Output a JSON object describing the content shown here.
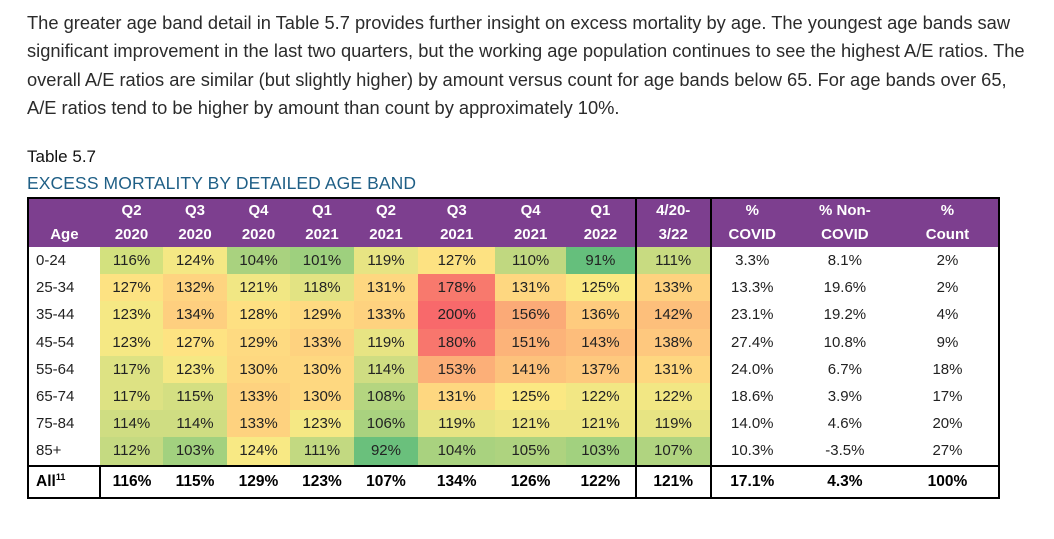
{
  "paragraph": "The greater age band detail in Table 5.7 provides further insight on excess mortality by age. The youngest age bands saw significant improvement in the last two quarters, but the working age population continues to see the highest A/E ratios. The overall A/E ratios are similar (but slightly higher) by amount versus count for age bands below 65. For age bands over 65, A/E ratios tend to be higher by amount than count by approximately 10%.",
  "table_label": "Table 5.7",
  "table_title": "EXCESS MORTALITY BY DETAILED AGE BAND",
  "header": {
    "age": "Age",
    "top": [
      "Q2",
      "Q3",
      "Q4",
      "Q1",
      "Q2",
      "Q3",
      "Q4",
      "Q1",
      "4/20-",
      "%",
      "% Non-",
      "%"
    ],
    "bottom": [
      "2020",
      "2020",
      "2020",
      "2021",
      "2021",
      "2021",
      "2021",
      "2022",
      "3/22",
      "COVID",
      "COVID",
      "Count"
    ]
  },
  "rows": [
    {
      "age": "0-24",
      "vals": [
        "116%",
        "124%",
        "104%",
        "101%",
        "119%",
        "127%",
        "110%",
        "91%",
        "111%",
        "3.3%",
        "8.1%",
        "2%"
      ],
      "colors": [
        "#d3e17e",
        "#f4e884",
        "#a9d27f",
        "#9ed07e",
        "#e7e483",
        "#fde282",
        "#c0d880",
        "#65bf7c",
        "#c8db81",
        "",
        "",
        ""
      ]
    },
    {
      "age": "25-34",
      "vals": [
        "127%",
        "132%",
        "121%",
        "118%",
        "131%",
        "178%",
        "131%",
        "125%",
        "133%",
        "13.3%",
        "19.6%",
        "2%"
      ],
      "colors": [
        "#fde282",
        "#fed480",
        "#f1e784",
        "#e2e383",
        "#fed780",
        "#f8796d",
        "#fed780",
        "#fae983",
        "#fed27f",
        "",
        "",
        ""
      ]
    },
    {
      "age": "35-44",
      "vals": [
        "123%",
        "134%",
        "128%",
        "129%",
        "133%",
        "200%",
        "156%",
        "136%",
        "142%",
        "23.1%",
        "19.2%",
        "4%"
      ],
      "colors": [
        "#f5e884",
        "#fecf7f",
        "#fee082",
        "#feda81",
        "#fed27f",
        "#f8696b",
        "#fbaa77",
        "#fecb7e",
        "#fdbf7b",
        "",
        "",
        ""
      ]
    },
    {
      "age": "45-54",
      "vals": [
        "123%",
        "127%",
        "129%",
        "133%",
        "119%",
        "180%",
        "151%",
        "143%",
        "138%",
        "27.4%",
        "10.8%",
        "9%"
      ],
      "colors": [
        "#f5e884",
        "#fee382",
        "#feda81",
        "#fed27f",
        "#e7e483",
        "#f8766d",
        "#fcb379",
        "#fdbd7b",
        "#fec87e",
        "",
        "",
        ""
      ]
    },
    {
      "age": "55-64",
      "vals": [
        "117%",
        "123%",
        "130%",
        "130%",
        "114%",
        "153%",
        "141%",
        "137%",
        "131%",
        "24.0%",
        "6.7%",
        "18%"
      ],
      "colors": [
        "#dde283",
        "#f5e884",
        "#fed880",
        "#fed880",
        "#cfdd82",
        "#fcaf78",
        "#fdc27c",
        "#fec97e",
        "#fed780",
        "",
        "",
        ""
      ]
    },
    {
      "age": "65-74",
      "vals": [
        "117%",
        "115%",
        "133%",
        "130%",
        "108%",
        "131%",
        "125%",
        "122%",
        "122%",
        "18.6%",
        "3.9%",
        "17%"
      ],
      "colors": [
        "#dde283",
        "#d4df82",
        "#fed27f",
        "#fed880",
        "#b4d580",
        "#fed780",
        "#fbe883",
        "#f2e784",
        "#f2e784",
        "",
        "",
        ""
      ]
    },
    {
      "age": "75-84",
      "vals": [
        "114%",
        "114%",
        "133%",
        "123%",
        "106%",
        "119%",
        "121%",
        "121%",
        "119%",
        "14.0%",
        "4.6%",
        "20%"
      ],
      "colors": [
        "#cfdd82",
        "#cfdd82",
        "#fed27f",
        "#f5e884",
        "#a9d27f",
        "#e7e483",
        "#eee684",
        "#eee684",
        "#e7e483",
        "",
        "",
        ""
      ]
    },
    {
      "age": "85+",
      "vals": [
        "112%",
        "103%",
        "124%",
        "111%",
        "92%",
        "104%",
        "105%",
        "103%",
        "107%",
        "10.3%",
        "-3.5%",
        "27%"
      ],
      "colors": [
        "#c5da81",
        "#a2d17f",
        "#f8e984",
        "#c2d981",
        "#6ac07c",
        "#a9d27f",
        "#aed37f",
        "#a2d17f",
        "#b0d480",
        "",
        "",
        ""
      ]
    }
  ],
  "all_row": {
    "label": "All",
    "label_sup": "11",
    "vals": [
      "116%",
      "115%",
      "129%",
      "123%",
      "107%",
      "134%",
      "126%",
      "122%",
      "121%",
      "17.1%",
      "4.3%",
      "100%"
    ]
  }
}
